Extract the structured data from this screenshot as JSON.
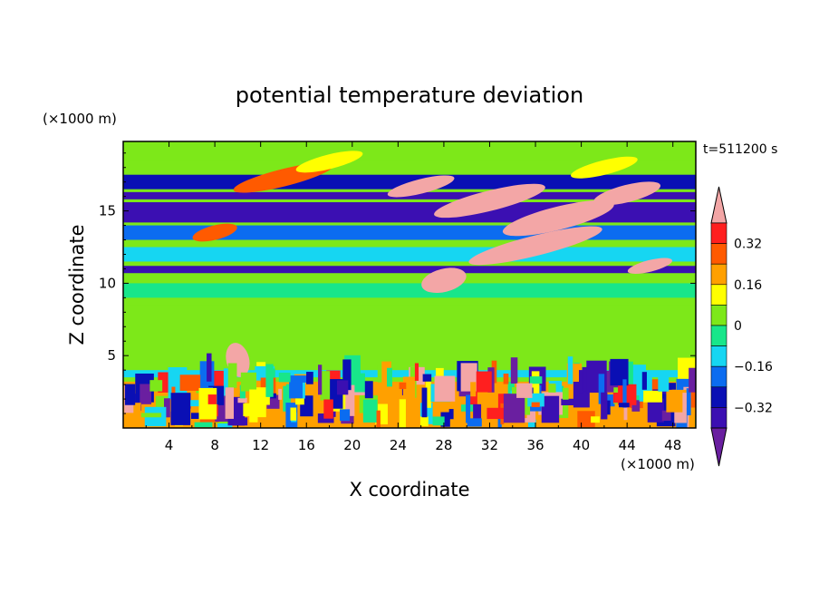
{
  "chart_data": {
    "type": "heatmap",
    "title": "potential temperature deviation",
    "time_label": "t=511200 s",
    "xlabel": "X coordinate",
    "ylabel": "Z coordinate",
    "x_unit": "(×1000 m)",
    "y_unit": "(×1000 m)",
    "xlim": [
      0,
      50
    ],
    "ylim": [
      0,
      19.8
    ],
    "x_ticks": [
      4,
      8,
      12,
      16,
      20,
      24,
      28,
      32,
      36,
      40,
      44,
      48
    ],
    "y_ticks": [
      5,
      10,
      15
    ],
    "colorbar": {
      "levels": [
        -0.4,
        -0.32,
        -0.24,
        -0.16,
        -0.08,
        0,
        0.08,
        0.16,
        0.24,
        0.32,
        0.4
      ],
      "tick_labels": [
        "0.32",
        "0.16",
        "0",
        "−0.16",
        "−0.32"
      ],
      "tick_values": [
        0.32,
        0.16,
        0,
        -0.16,
        -0.32
      ],
      "colors": [
        "#6a1fa0",
        "#3b0fb2",
        "#0a0fb4",
        "#0b6cf0",
        "#16d6f2",
        "#18e68a",
        "#7de819",
        "#ffff00",
        "#ffa000",
        "#ff5a00",
        "#ff1f1f",
        "#f3a6a6"
      ],
      "extend": "both"
    },
    "horizontal_bands": [
      {
        "z_range": [
          18.5,
          19.8
        ],
        "value": 0.05
      },
      {
        "z_range": [
          16.5,
          17.5
        ],
        "value": -0.3
      },
      {
        "z_range": [
          15.8,
          16.3
        ],
        "value": -0.36
      },
      {
        "z_range": [
          14.2,
          15.6
        ],
        "value": -0.33
      },
      {
        "z_range": [
          13.0,
          14.0
        ],
        "value": -0.2
      },
      {
        "z_range": [
          11.5,
          12.5
        ],
        "value": -0.1
      },
      {
        "z_range": [
          10.7,
          11.2
        ],
        "value": -0.35
      },
      {
        "z_range": [
          9.0,
          10.0
        ],
        "value": -0.02
      },
      {
        "z_range": [
          4.0,
          8.5
        ],
        "value": 0.03
      },
      {
        "z_range": [
          3.5,
          4.0
        ],
        "value": -0.12
      },
      {
        "z_range": [
          0,
          3.2
        ],
        "value": 0.2
      }
    ]
  }
}
